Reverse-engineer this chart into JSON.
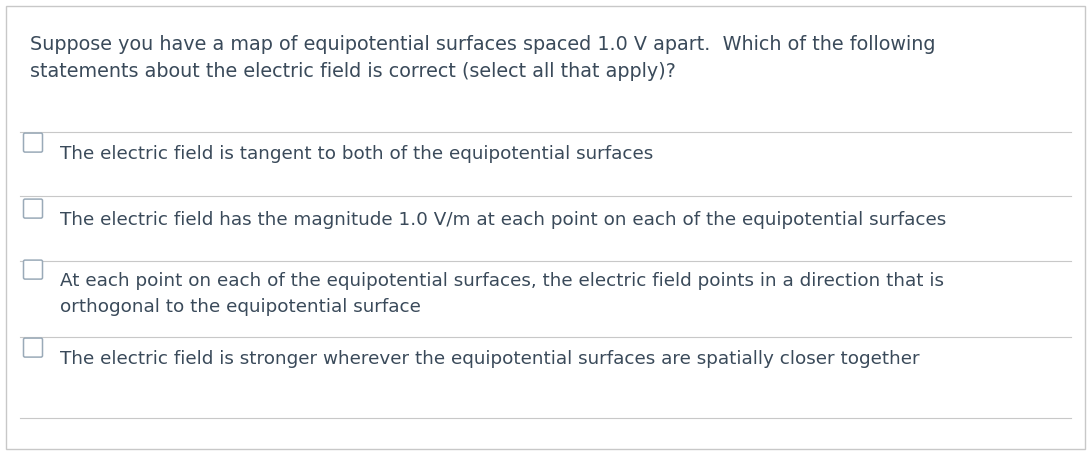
{
  "background_color": "#ffffff",
  "border_color": "#c8c8c8",
  "divider_color": "#c8c8c8",
  "text_color": "#3a4a5a",
  "checkbox_edge_color": "#9aaab8",
  "question_line1": "Suppose you have a map of equipotential surfaces spaced 1.0 V apart.  Which of the following",
  "question_line2": "statements about the electric field is correct (select all that apply)?",
  "options": [
    "The electric field is tangent to both of the equipotential surfaces",
    "The electric field has the magnitude 1.0 V/m at each point on each of the equipotential surfaces",
    "At each point on each of the equipotential surfaces, the electric field points in a direction that is\northogonal to the equipotential surface",
    "The electric field is stronger wherever the equipotential surfaces are spatially closer together"
  ],
  "question_fontsize": 13.8,
  "option_fontsize": 13.2,
  "fig_width": 10.91,
  "fig_height": 4.55,
  "dpi": 100
}
